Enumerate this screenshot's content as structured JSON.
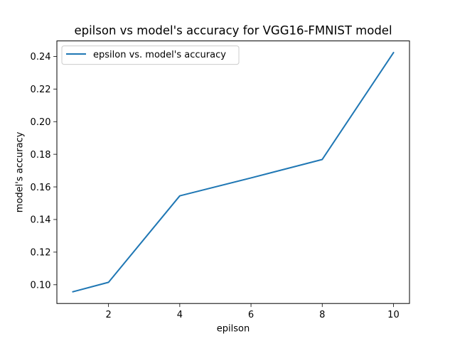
{
  "chart_data": {
    "type": "line",
    "title": "epilson vs model's accuracy for VGG16-FMNIST model",
    "xlabel": "epilson",
    "ylabel": "model's accuracy",
    "x": [
      1,
      2,
      4,
      6,
      8,
      10
    ],
    "series": [
      {
        "name": "epsilon vs. model's accuracy",
        "values": [
          0.0957,
          0.1015,
          0.1545,
          0.1655,
          0.1768,
          0.2423
        ],
        "color": "#1f77b4"
      }
    ],
    "xlim": [
      0.55,
      10.45
    ],
    "ylim": [
      0.0885,
      0.2495
    ],
    "x_ticks": [
      2,
      4,
      6,
      8,
      10
    ],
    "x_tick_labels": [
      "2",
      "4",
      "6",
      "8",
      "10"
    ],
    "y_ticks": [
      0.1,
      0.12,
      0.14,
      0.16,
      0.18,
      0.2,
      0.22,
      0.24
    ],
    "y_tick_labels": [
      "0.10",
      "0.12",
      "0.14",
      "0.16",
      "0.18",
      "0.20",
      "0.22",
      "0.24"
    ],
    "grid": false,
    "legend_position": "top-left"
  }
}
